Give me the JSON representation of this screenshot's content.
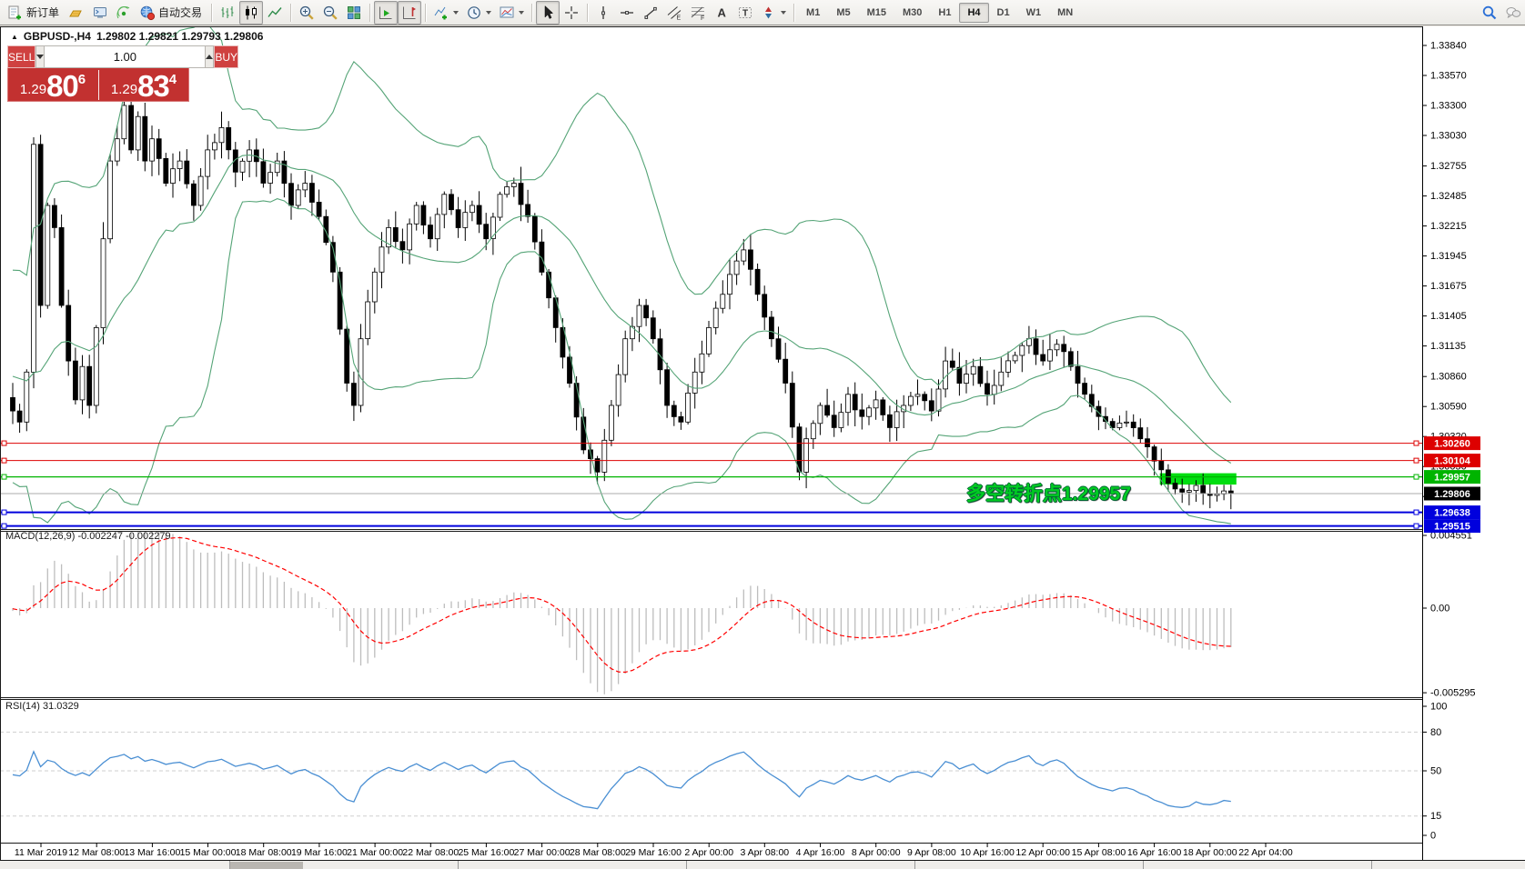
{
  "toolbar": {
    "new_order_label": "新订单",
    "autotrading_label": "自动交易",
    "timeframes": [
      "M1",
      "M5",
      "M15",
      "M30",
      "H1",
      "H4",
      "D1",
      "W1",
      "MN"
    ],
    "active_timeframe": "H4"
  },
  "chart_header": {
    "collapse_marker": "▲",
    "symbol_period": "GBPUSD-,H4",
    "ohlc": "1.29802 1.29821 1.29793 1.29806"
  },
  "quote_panel": {
    "sell_label": "SELL",
    "buy_label": "BUY",
    "volume": "1.00",
    "sell_price_prefix": "1.29",
    "sell_price_big": "80",
    "sell_price_sup": "6",
    "buy_price_prefix": "1.29",
    "buy_price_big": "83",
    "buy_price_sup": "4"
  },
  "annotation": {
    "text": "多空转折点1.29957",
    "color": "#00CC22"
  },
  "chart_data": {
    "type": "candlestick",
    "symbol": "GBPUSD-",
    "period": "H4",
    "ohlc_display": {
      "open": "1.29802",
      "high": "1.29821",
      "low": "1.29793",
      "close": "1.29806"
    },
    "price_axis_ticks": [
      "1.33840",
      "1.33570",
      "1.33300",
      "1.33030",
      "1.32755",
      "1.32485",
      "1.32215",
      "1.31945",
      "1.31675",
      "1.31405",
      "1.31135",
      "1.30860",
      "1.30590",
      "1.30320",
      "1.30050",
      "1.29780",
      "1.29510"
    ],
    "time_axis_labels": [
      "11 Mar 2019",
      "12 Mar 08:00",
      "13 Mar 16:00",
      "15 Mar 00:00",
      "18 Mar 08:00",
      "19 Mar 16:00",
      "21 Mar 00:00",
      "22 Mar 08:00",
      "25 Mar 16:00",
      "27 Mar 00:00",
      "28 Mar 08:00",
      "29 Mar 16:00",
      "2 Apr 00:00",
      "3 Apr 08:00",
      "4 Apr 16:00",
      "8 Apr 00:00",
      "9 Apr 08:00",
      "10 Apr 16:00",
      "12 Apr 00:00",
      "15 Apr 08:00",
      "16 Apr 16:00",
      "18 Apr 00:00",
      "22 Apr 04:00"
    ],
    "bollinger": {
      "period": 20,
      "deviation": 2,
      "color": "#55a477"
    },
    "candle_colors": {
      "up": "#FFFFFF",
      "down": "#000000",
      "outline": "#000000"
    },
    "close_anchors": [
      [
        0,
        1.3055
      ],
      [
        1,
        1.3045
      ],
      [
        2,
        1.309
      ],
      [
        3,
        1.3295
      ],
      [
        4,
        1.315
      ],
      [
        5,
        1.324
      ],
      [
        6,
        1.322
      ],
      [
        7,
        1.315
      ],
      [
        8,
        1.31
      ],
      [
        9,
        1.3065
      ],
      [
        10,
        1.3095
      ],
      [
        11,
        1.306
      ],
      [
        12,
        1.313
      ],
      [
        13,
        1.321
      ],
      [
        14,
        1.328
      ],
      [
        15,
        1.33
      ],
      [
        16,
        1.333
      ],
      [
        17,
        1.329
      ],
      [
        18,
        1.332
      ],
      [
        19,
        1.328
      ],
      [
        20,
        1.33
      ],
      [
        22,
        1.326
      ],
      [
        24,
        1.328
      ],
      [
        26,
        1.324
      ],
      [
        28,
        1.329
      ],
      [
        30,
        1.331
      ],
      [
        32,
        1.327
      ],
      [
        34,
        1.329
      ],
      [
        36,
        1.326
      ],
      [
        38,
        1.328
      ],
      [
        40,
        1.324
      ],
      [
        42,
        1.326
      ],
      [
        44,
        1.323
      ],
      [
        46,
        1.318
      ],
      [
        48,
        1.308
      ],
      [
        49,
        1.306
      ],
      [
        50,
        1.312
      ],
      [
        52,
        1.318
      ],
      [
        54,
        1.322
      ],
      [
        56,
        1.32
      ],
      [
        58,
        1.324
      ],
      [
        60,
        1.321
      ],
      [
        62,
        1.325
      ],
      [
        64,
        1.322
      ],
      [
        66,
        1.324
      ],
      [
        68,
        1.321
      ],
      [
        70,
        1.325
      ],
      [
        72,
        1.326
      ],
      [
        74,
        1.323
      ],
      [
        76,
        1.318
      ],
      [
        78,
        1.313
      ],
      [
        80,
        1.308
      ],
      [
        82,
        1.302
      ],
      [
        84,
        1.3
      ],
      [
        86,
        1.306
      ],
      [
        88,
        1.312
      ],
      [
        90,
        1.315
      ],
      [
        92,
        1.312
      ],
      [
        94,
        1.306
      ],
      [
        96,
        1.3045
      ],
      [
        98,
        1.309
      ],
      [
        100,
        1.313
      ],
      [
        102,
        1.316
      ],
      [
        104,
        1.319
      ],
      [
        105,
        1.32
      ],
      [
        107,
        1.316
      ],
      [
        109,
        1.312
      ],
      [
        111,
        1.308
      ],
      [
        113,
        1.3
      ],
      [
        114,
        1.303
      ],
      [
        116,
        1.306
      ],
      [
        118,
        1.304
      ],
      [
        120,
        1.307
      ],
      [
        122,
        1.305
      ],
      [
        124,
        1.3065
      ],
      [
        126,
        1.304
      ],
      [
        128,
        1.306
      ],
      [
        130,
        1.307
      ],
      [
        132,
        1.3055
      ],
      [
        134,
        1.31
      ],
      [
        136,
        1.308
      ],
      [
        138,
        1.3095
      ],
      [
        140,
        1.307
      ],
      [
        142,
        1.309
      ],
      [
        144,
        1.3105
      ],
      [
        146,
        1.312
      ],
      [
        148,
        1.31
      ],
      [
        150,
        1.3115
      ],
      [
        152,
        1.3095
      ],
      [
        154,
        1.307
      ],
      [
        156,
        1.305
      ],
      [
        158,
        1.304
      ],
      [
        160,
        1.3045
      ],
      [
        162,
        1.303
      ],
      [
        164,
        1.301
      ],
      [
        166,
        1.299
      ],
      [
        168,
        1.2982
      ],
      [
        170,
        1.2988
      ],
      [
        172,
        1.2979
      ],
      [
        174,
        1.2983
      ],
      [
        175,
        1.29806
      ]
    ],
    "horizontal_lines": [
      {
        "price": 1.3026,
        "label": "1.30260",
        "color": "#DD0000",
        "thickness": 1
      },
      {
        "price": 1.30104,
        "label": "1.30104",
        "color": "#DD0000",
        "thickness": 1
      },
      {
        "price": 1.29957,
        "label": "1.29957",
        "color": "#00B400",
        "thickness": 1.3
      },
      {
        "price": 1.29638,
        "label": "1.29638",
        "color": "#0000DD",
        "thickness": 2
      },
      {
        "price": 1.29515,
        "label": "1.29515",
        "color": "#0000DD",
        "thickness": 2
      }
    ],
    "current_price": {
      "price": 1.29806,
      "label": "1.29806",
      "line_color": "#ABABAB",
      "badge_color": "#000000"
    },
    "highlight_rect": {
      "from_index": 164.8,
      "to_index": 175.8,
      "price_top": 1.2999,
      "price_bottom": 1.29888,
      "color": "#00DE10"
    },
    "macd": {
      "label": "MACD(12,26,9) -0.002247 -0.002279",
      "fast": 12,
      "slow": 26,
      "signal": 9,
      "axis_ticks": [
        "0.004551",
        "0.00",
        "-0.005295"
      ],
      "axis_values": [
        0.004551,
        0,
        -0.005295
      ],
      "histogram_color": "#BDBDBD",
      "signal_color": "#FF0000"
    },
    "rsi": {
      "label": "RSI(14) 31.0329",
      "period": 14,
      "value": 31.0329,
      "axis_ticks": [
        "100",
        "80",
        "50",
        "15",
        "0"
      ],
      "axis_tick_values": [
        100,
        80,
        50,
        15,
        0
      ],
      "levels": [
        80,
        50,
        15
      ],
      "line_color": "#4A8FD3"
    }
  }
}
